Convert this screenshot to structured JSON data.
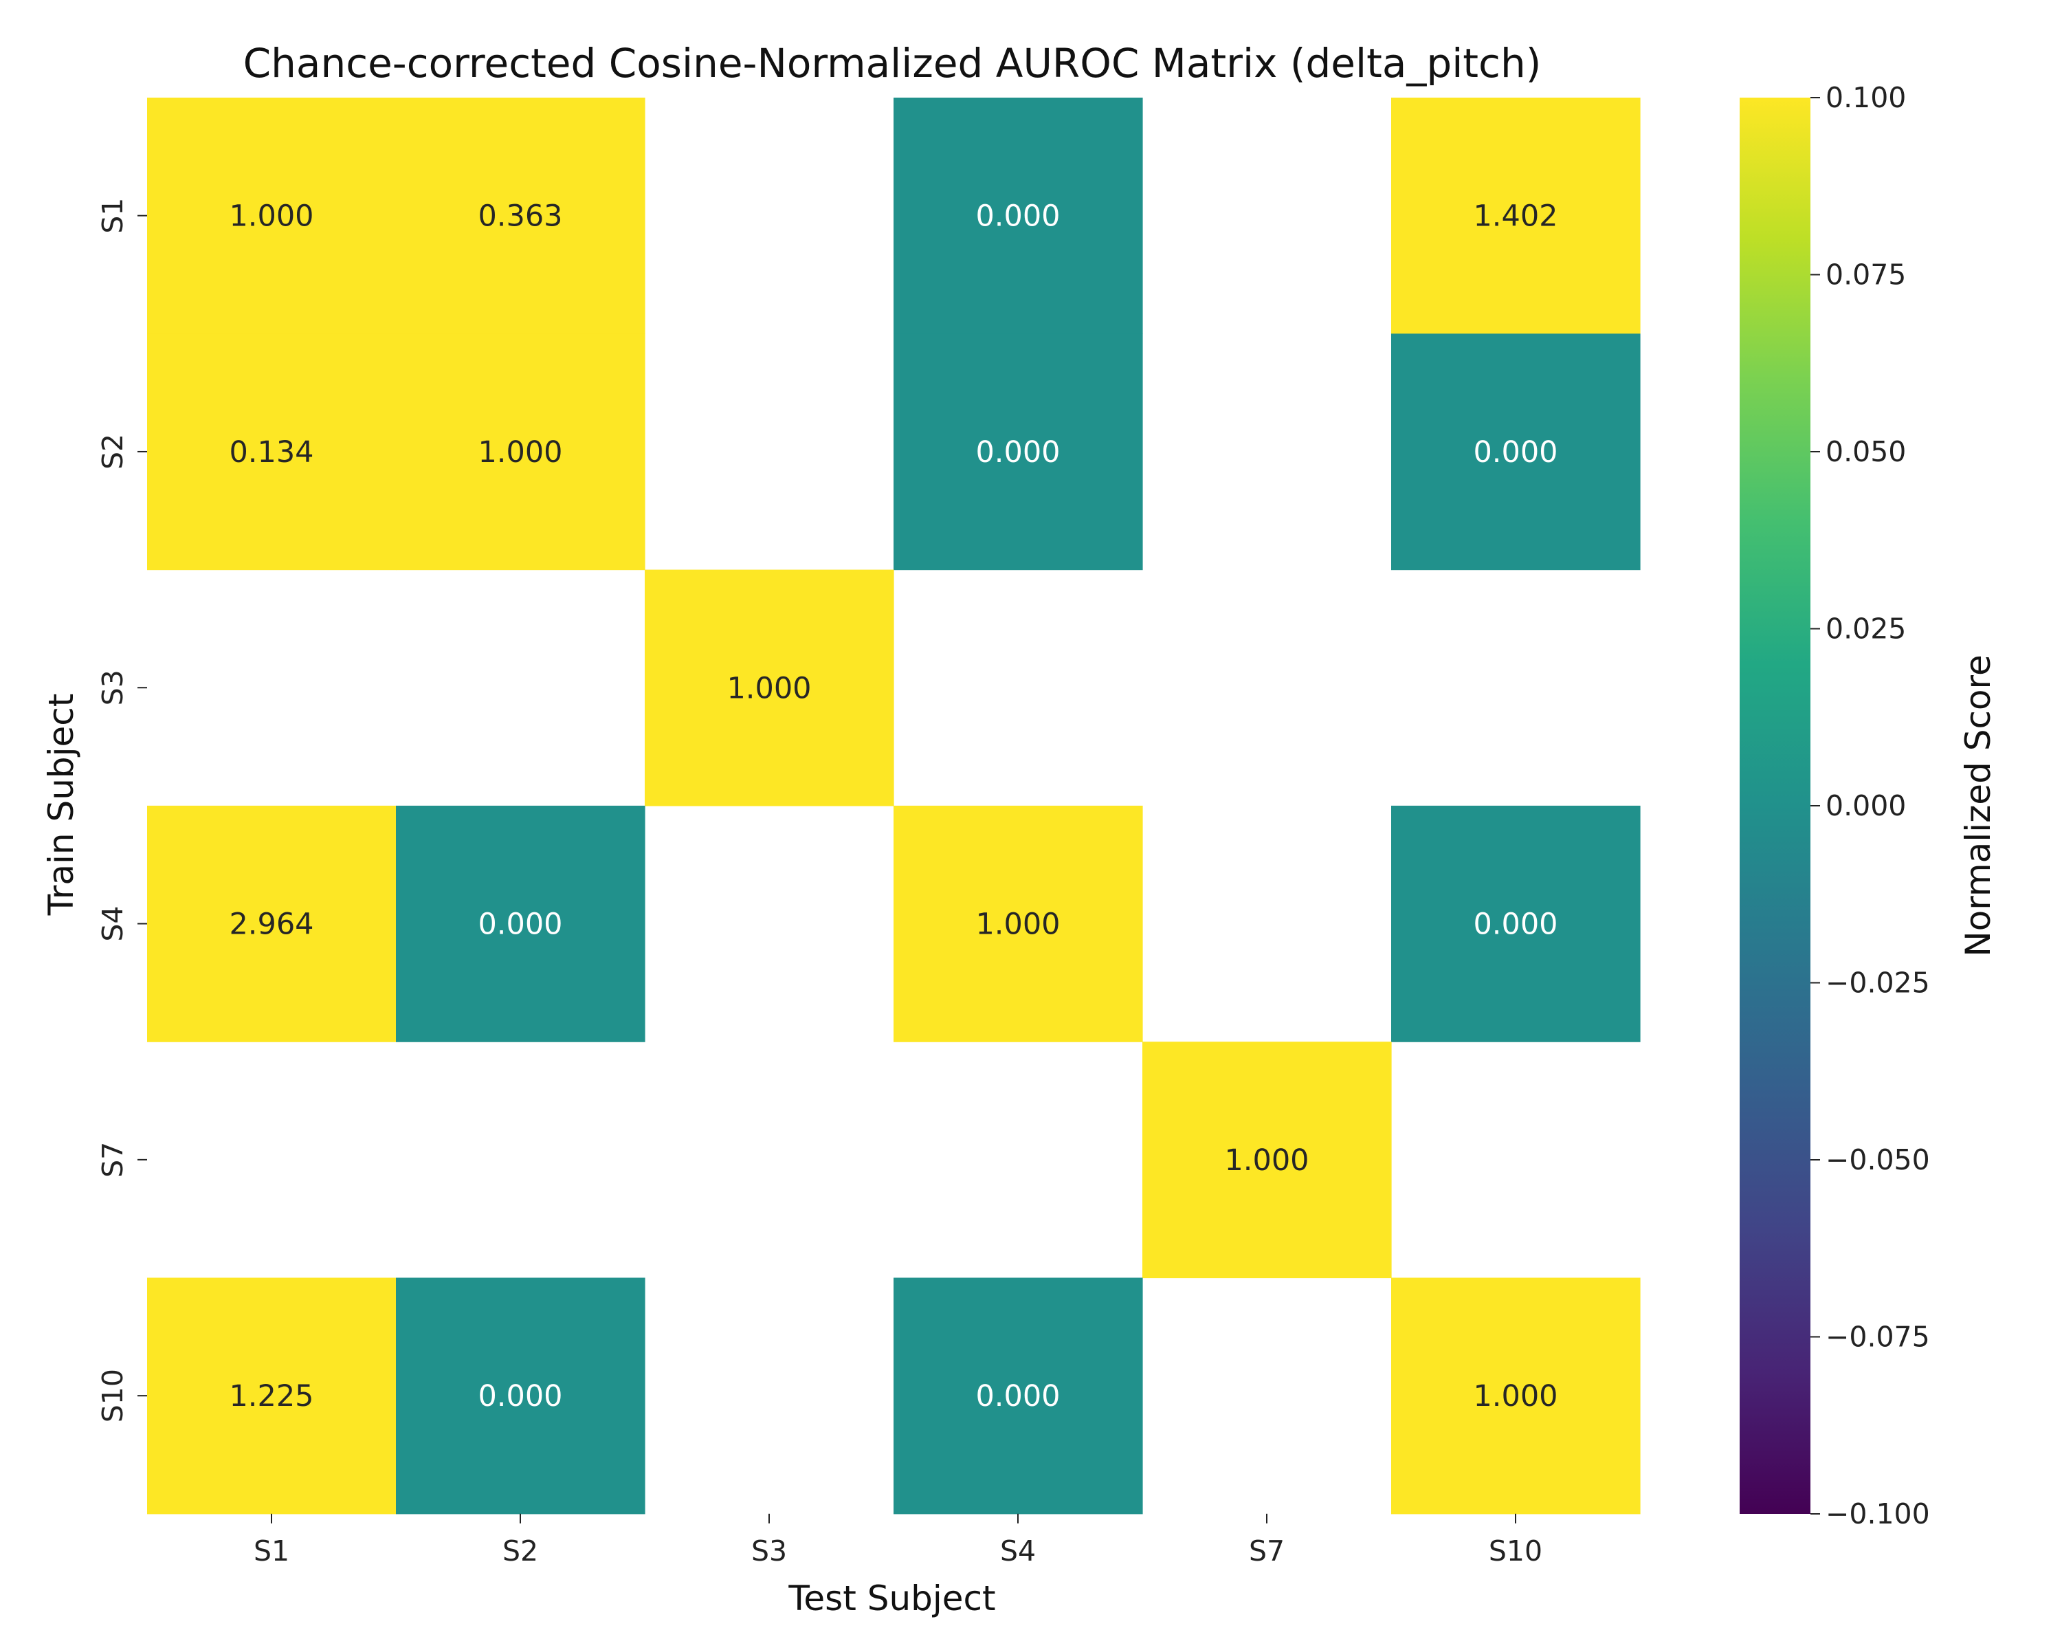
{
  "chart_data": {
    "type": "heatmap",
    "title": "Chance-corrected Cosine-Normalized AUROC Matrix (delta_pitch)",
    "xlabel": "Test Subject",
    "ylabel": "Train Subject",
    "x_categories": [
      "S1",
      "S2",
      "S3",
      "S4",
      "S7",
      "S10"
    ],
    "y_categories": [
      "S1",
      "S2",
      "S3",
      "S4",
      "S7",
      "S10"
    ],
    "values": [
      [
        1.0,
        0.363,
        null,
        0.0,
        null,
        1.402
      ],
      [
        0.134,
        1.0,
        null,
        0.0,
        null,
        0.0
      ],
      [
        null,
        null,
        1.0,
        null,
        null,
        null
      ],
      [
        2.964,
        0.0,
        null,
        1.0,
        null,
        0.0
      ],
      [
        null,
        null,
        null,
        null,
        1.0,
        null
      ],
      [
        1.225,
        0.0,
        null,
        0.0,
        null,
        1.0
      ]
    ],
    "labels": [
      [
        "1.000",
        "0.363",
        "",
        "0.000",
        "",
        "1.402"
      ],
      [
        "0.134",
        "1.000",
        "",
        "0.000",
        "",
        "0.000"
      ],
      [
        "",
        "",
        "1.000",
        "",
        "",
        ""
      ],
      [
        "2.964",
        "0.000",
        "",
        "1.000",
        "",
        "0.000"
      ],
      [
        "",
        "",
        "",
        "",
        "1.000",
        ""
      ],
      [
        "1.225",
        "0.000",
        "",
        "0.000",
        "",
        "1.000"
      ]
    ],
    "colorbar": {
      "label": "Normalized Score",
      "vmin": -0.1,
      "vmax": 0.1,
      "colormap": "viridis",
      "ticks": [
        0.1,
        0.075,
        0.05,
        0.025,
        0.0,
        -0.025,
        -0.05,
        -0.075,
        -0.1
      ],
      "tick_labels": [
        "0.100",
        "0.075",
        "0.050",
        "0.025",
        "0.000",
        "−0.025",
        "−0.050",
        "−0.075",
        "−0.100"
      ]
    },
    "colors": {
      "dark_text": "#262626",
      "light_text": "#ffffff",
      "missing": "#ffffff"
    }
  }
}
